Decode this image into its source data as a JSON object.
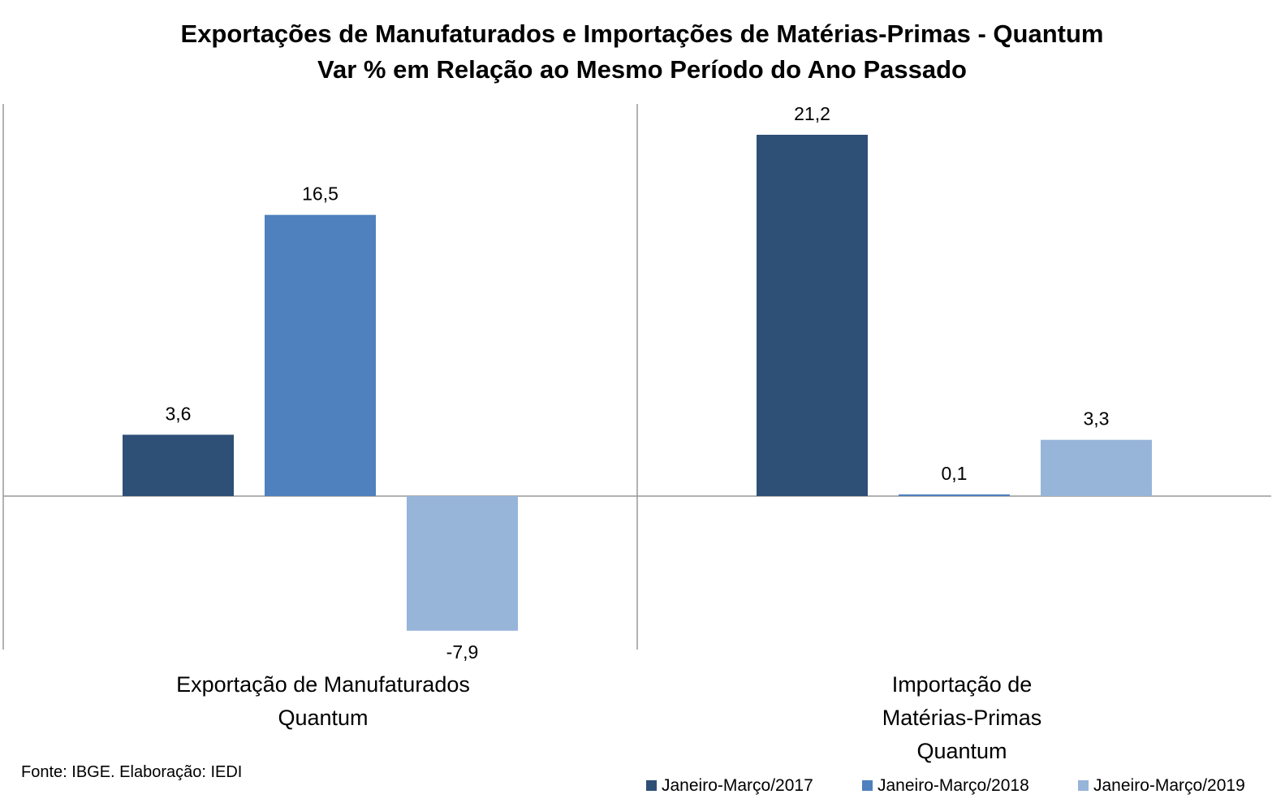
{
  "chart_data": {
    "type": "bar",
    "title": [
      "Exportações de Manufaturados e Importações de Matérias-Primas - Quantum",
      "Var % em Relação ao Mesmo Período do Ano Passado"
    ],
    "categories": [
      [
        "Exportação de Manufaturados",
        "Quantum"
      ],
      [
        "Importação de",
        "Matérias-Primas",
        "Quantum"
      ]
    ],
    "series": [
      {
        "name": "Janeiro-Março/2017",
        "color": "#2E4F76",
        "values": [
          3.6,
          21.2
        ],
        "labels": [
          "3,6",
          "21,2"
        ]
      },
      {
        "name": "Janeiro-Março/2018",
        "color": "#4E81BD",
        "values": [
          16.5,
          0.1
        ],
        "labels": [
          "16,5",
          "0,1"
        ]
      },
      {
        "name": "Janeiro-Março/2019",
        "color": "#97B4D9",
        "values": [
          -7.9,
          3.3
        ],
        "labels": [
          "-7,9",
          "3,3"
        ]
      }
    ],
    "ylim": [
      -9,
      23
    ],
    "grid": false,
    "legend": "bottom-right",
    "xlabel": "",
    "ylabel": ""
  },
  "source": "Fonte: IBGE. Elaboração: IEDI"
}
